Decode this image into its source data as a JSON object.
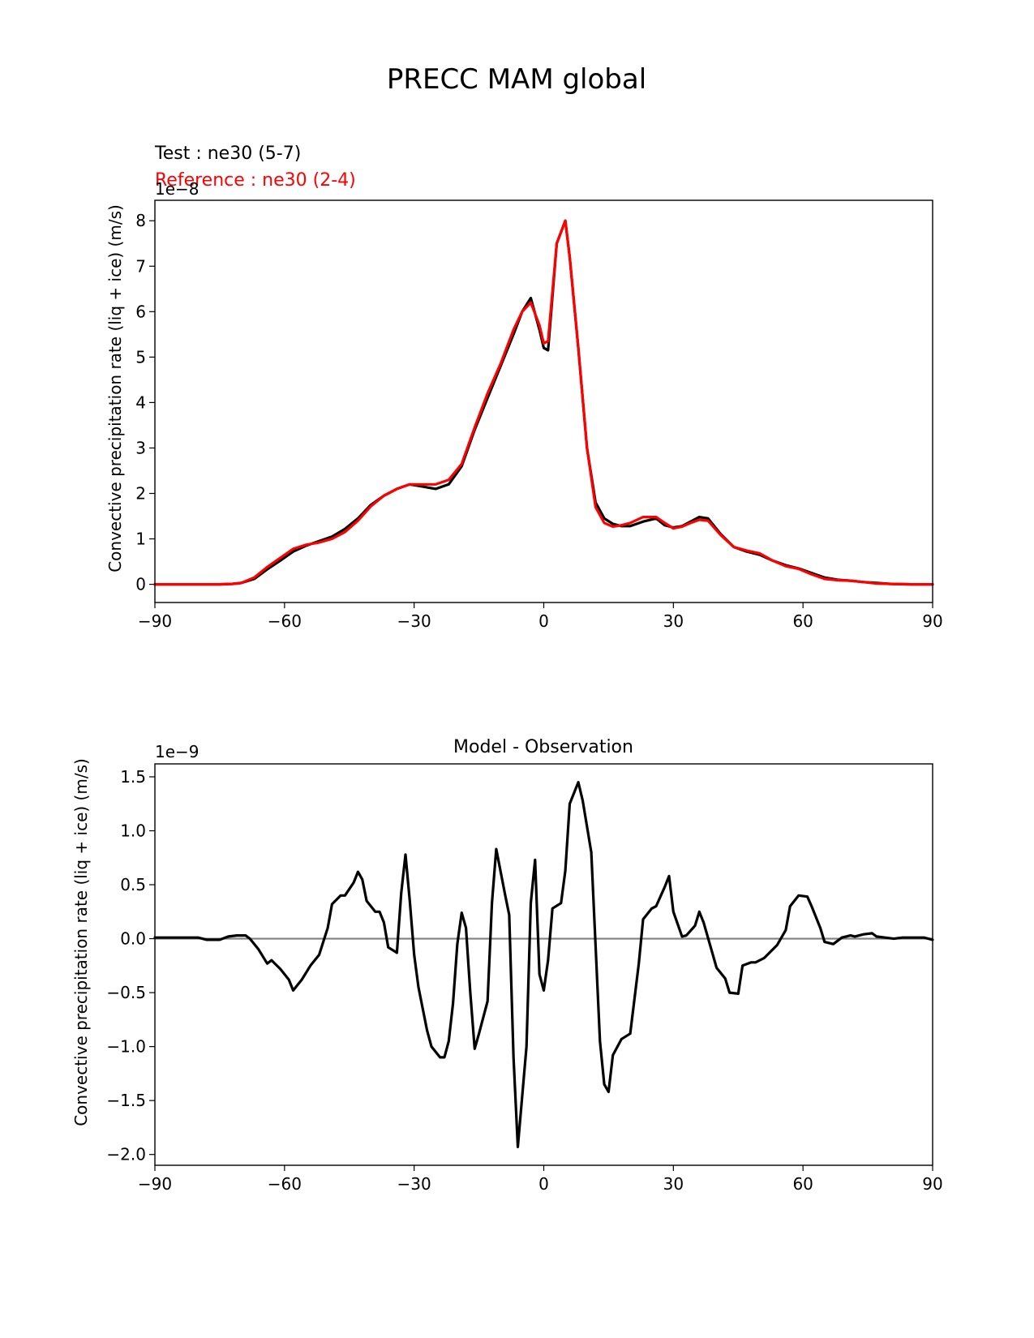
{
  "figure": {
    "suptitle": "PRECC MAM global"
  },
  "chart_data": [
    {
      "type": "line",
      "test_label": "Test : ne30 (5-7)",
      "reference_label": "Reference : ne30 (2-4)",
      "ylabel": "Convective precipitation rate (liq + ice) (m/s)",
      "offset_text": "1e−8",
      "xlim": [
        -90,
        90
      ],
      "ylim": [
        -0.4,
        8.45
      ],
      "xticks": [
        -90,
        -60,
        -30,
        0,
        30,
        60,
        90
      ],
      "xtick_labels": [
        "−90",
        "−60",
        "−30",
        "0",
        "30",
        "60",
        "90"
      ],
      "yticks": [
        0,
        1,
        2,
        3,
        4,
        5,
        6,
        7,
        8
      ],
      "ytick_labels": [
        "0",
        "1",
        "2",
        "3",
        "4",
        "5",
        "6",
        "7",
        "8"
      ],
      "colors": {
        "test": "#000000",
        "reference": "#ff0000"
      },
      "x": [
        -90,
        -85,
        -80,
        -75,
        -72,
        -70,
        -67,
        -64,
        -61,
        -58,
        -55,
        -52,
        -49,
        -46,
        -43,
        -40,
        -37,
        -34,
        -31,
        -28,
        -25,
        -22,
        -19,
        -16,
        -13,
        -10,
        -7,
        -5,
        -3,
        -1,
        0,
        1,
        3,
        5,
        6,
        8,
        10,
        12,
        14,
        16,
        18,
        20,
        23,
        26,
        28,
        30,
        32,
        34,
        36,
        38,
        41,
        44,
        47,
        50,
        53,
        56,
        59,
        62,
        65,
        68,
        71,
        74,
        77,
        80,
        85,
        90
      ],
      "series": [
        {
          "name": "Test : ne30 (5-7)",
          "values": [
            0,
            0,
            0,
            0,
            0.01,
            0.03,
            0.12,
            0.33,
            0.52,
            0.72,
            0.85,
            0.95,
            1.05,
            1.22,
            1.45,
            1.75,
            1.95,
            2.1,
            2.2,
            2.15,
            2.1,
            2.2,
            2.6,
            3.4,
            4.1,
            4.8,
            5.5,
            6.0,
            6.3,
            5.6,
            5.2,
            5.15,
            7.5,
            8.0,
            7.2,
            5.2,
            3.0,
            1.8,
            1.45,
            1.33,
            1.28,
            1.28,
            1.38,
            1.45,
            1.3,
            1.25,
            1.28,
            1.38,
            1.48,
            1.45,
            1.1,
            0.82,
            0.72,
            0.65,
            0.52,
            0.42,
            0.35,
            0.25,
            0.15,
            0.1,
            0.08,
            0.05,
            0.03,
            0.01,
            0,
            0
          ]
        },
        {
          "name": "Reference : ne30 (2-4)",
          "values": [
            0,
            0,
            0,
            0,
            0.01,
            0.03,
            0.15,
            0.38,
            0.58,
            0.78,
            0.87,
            0.92,
            1.0,
            1.15,
            1.4,
            1.72,
            1.95,
            2.1,
            2.2,
            2.2,
            2.2,
            2.3,
            2.65,
            3.45,
            4.2,
            4.85,
            5.6,
            6.0,
            6.2,
            5.7,
            5.3,
            5.35,
            7.5,
            8.0,
            7.2,
            5.2,
            3.0,
            1.7,
            1.35,
            1.27,
            1.3,
            1.35,
            1.48,
            1.48,
            1.35,
            1.23,
            1.27,
            1.35,
            1.42,
            1.4,
            1.08,
            0.82,
            0.74,
            0.68,
            0.52,
            0.4,
            0.34,
            0.22,
            0.12,
            0.09,
            0.08,
            0.05,
            0.02,
            0.01,
            0,
            0
          ]
        }
      ]
    },
    {
      "type": "line",
      "title": "Model - Observation",
      "ylabel": "Convective precipitation rate (liq + ice) (m/s)",
      "offset_text": "1e−9",
      "xlim": [
        -90,
        90
      ],
      "ylim": [
        -2.1,
        1.62
      ],
      "xticks": [
        -90,
        -60,
        -30,
        0,
        30,
        60,
        90
      ],
      "xtick_labels": [
        "−90",
        "−60",
        "−30",
        "0",
        "30",
        "60",
        "90"
      ],
      "yticks": [
        -2.0,
        -1.5,
        -1.0,
        -0.5,
        0.0,
        0.5,
        1.0,
        1.5
      ],
      "ytick_labels": [
        "−2.0",
        "−1.5",
        "−1.0",
        "−0.5",
        "0.0",
        "0.5",
        "1.0",
        "1.5"
      ],
      "colors": {
        "difference": "#000000",
        "zero_line": "#808080"
      },
      "zero_line": 0,
      "x": [
        -90,
        -80,
        -78,
        -75,
        -73,
        -71,
        -69,
        -68,
        -66,
        -64,
        -63,
        -61,
        -59,
        -58,
        -56,
        -54,
        -52,
        -50,
        -49,
        -47,
        -46,
        -44,
        -43,
        -42,
        -41,
        -39,
        -38,
        -37,
        -36,
        -34,
        -33,
        -32,
        -31,
        -30,
        -29,
        -27,
        -26,
        -24,
        -23,
        -22,
        -21,
        -20,
        -19,
        -18,
        -17,
        -16,
        -15,
        -13,
        -12,
        -11,
        -9,
        -8,
        -7,
        -6,
        -4,
        -3,
        -2,
        -1,
        0,
        1,
        2,
        4,
        5,
        6,
        8,
        9,
        11,
        13,
        14,
        15,
        16,
        18,
        20,
        22,
        23,
        25,
        26,
        28,
        29,
        30,
        32,
        33,
        35,
        36,
        37,
        39,
        40,
        42,
        43,
        45,
        46,
        48,
        49,
        51,
        52,
        54,
        56,
        57,
        59,
        61,
        62,
        64,
        65,
        67,
        69,
        71,
        72,
        74,
        76,
        77,
        79,
        81,
        83,
        85,
        88,
        90
      ],
      "series": [
        {
          "name": "",
          "values": [
            0.01,
            0.01,
            -0.01,
            -0.01,
            0.02,
            0.03,
            0.03,
            0.0,
            -0.1,
            -0.23,
            -0.2,
            -0.28,
            -0.38,
            -0.48,
            -0.38,
            -0.25,
            -0.15,
            0.1,
            0.32,
            0.4,
            0.4,
            0.52,
            0.62,
            0.55,
            0.35,
            0.25,
            0.25,
            0.15,
            -0.08,
            -0.13,
            0.42,
            0.78,
            0.35,
            -0.15,
            -0.45,
            -0.85,
            -1.0,
            -1.1,
            -1.1,
            -0.95,
            -0.6,
            -0.05,
            0.24,
            0.1,
            -0.5,
            -1.02,
            -0.88,
            -0.58,
            0.33,
            0.83,
            0.42,
            0.22,
            -1.1,
            -1.93,
            -1.0,
            0.33,
            0.73,
            -0.33,
            -0.48,
            -0.2,
            0.28,
            0.33,
            0.63,
            1.25,
            1.45,
            1.28,
            0.8,
            -0.95,
            -1.35,
            -1.42,
            -1.08,
            -0.93,
            -0.88,
            -0.23,
            0.18,
            0.28,
            0.3,
            0.48,
            0.58,
            0.25,
            0.02,
            0.03,
            0.12,
            0.25,
            0.15,
            -0.13,
            -0.27,
            -0.37,
            -0.5,
            -0.51,
            -0.25,
            -0.22,
            -0.22,
            -0.18,
            -0.14,
            -0.06,
            0.08,
            0.3,
            0.4,
            0.39,
            0.3,
            0.1,
            -0.03,
            -0.05,
            0.01,
            0.03,
            0.02,
            0.04,
            0.05,
            0.02,
            0.01,
            0.0,
            0.01,
            0.01,
            0.01,
            -0.01
          ]
        }
      ]
    }
  ]
}
